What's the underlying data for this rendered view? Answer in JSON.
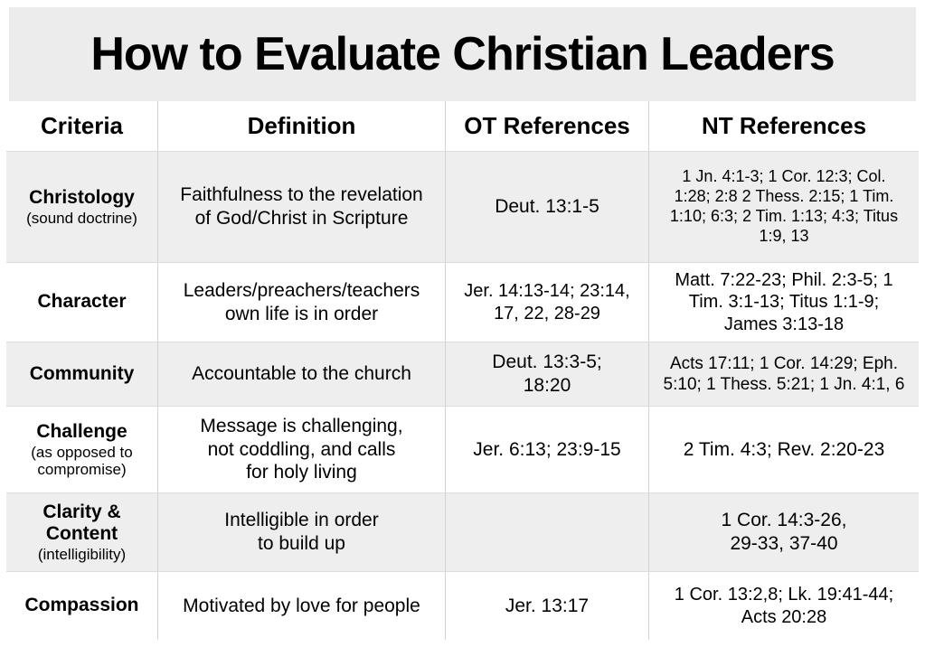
{
  "title": "How to Evaluate Christian Leaders",
  "colors": {
    "banner_bg": "#ececec",
    "shaded_row_bg": "#eeeeee",
    "gridline": "#d2d2d2",
    "text": "#000000"
  },
  "table": {
    "headers": {
      "criteria": "Criteria",
      "definition": "Definition",
      "ot": "OT References",
      "nt": "NT References"
    },
    "rows": [
      {
        "criteria": "Christology",
        "criteria_note": "(sound doctrine)",
        "definition": "Faithfulness to the revelation\nof God/Christ in Scripture",
        "ot": "Deut. 13:1-5",
        "nt": "1 Jn. 4:1-3; 1 Cor. 12:3; Col.\n1:28; 2:8 2 Thess. 2:15; 1 Tim.\n1:10; 6:3; 2 Tim. 1:13; 4:3; Titus\n1:9, 13"
      },
      {
        "criteria": "Character",
        "criteria_note": "",
        "definition": "Leaders/preachers/teachers\nown life is in order",
        "ot": "Jer. 14:13-14; 23:14,\n17, 22, 28-29",
        "nt": "Matt. 7:22-23; Phil. 2:3-5; 1\nTim. 3:1-13; Titus 1:1-9;\nJames 3:13-18"
      },
      {
        "criteria": "Community",
        "criteria_note": "",
        "definition": "Accountable to the church",
        "ot": "Deut. 13:3-5;\n18:20",
        "nt": "Acts 17:11; 1 Cor. 14:29; Eph.\n5:10; 1 Thess. 5:21; 1 Jn. 4:1, 6"
      },
      {
        "criteria": "Challenge",
        "criteria_note": "(as opposed to\ncompromise)",
        "definition": "Message is challenging,\nnot coddling, and calls\nfor holy living",
        "ot": "Jer. 6:13; 23:9-15",
        "nt": "2 Tim. 4:3; Rev. 2:20-23"
      },
      {
        "criteria": "Clarity & Content",
        "criteria_note": "(intelligibility)",
        "definition": "Intelligible in order\nto build up",
        "ot": "",
        "nt": "1 Cor. 14:3-26,\n29-33, 37-40"
      },
      {
        "criteria": "Compassion",
        "criteria_note": "",
        "definition": "Motivated by love for people",
        "ot": "Jer. 13:17",
        "nt": "1 Cor. 13:2,8; Lk. 19:41-44;\nActs 20:28"
      }
    ]
  }
}
